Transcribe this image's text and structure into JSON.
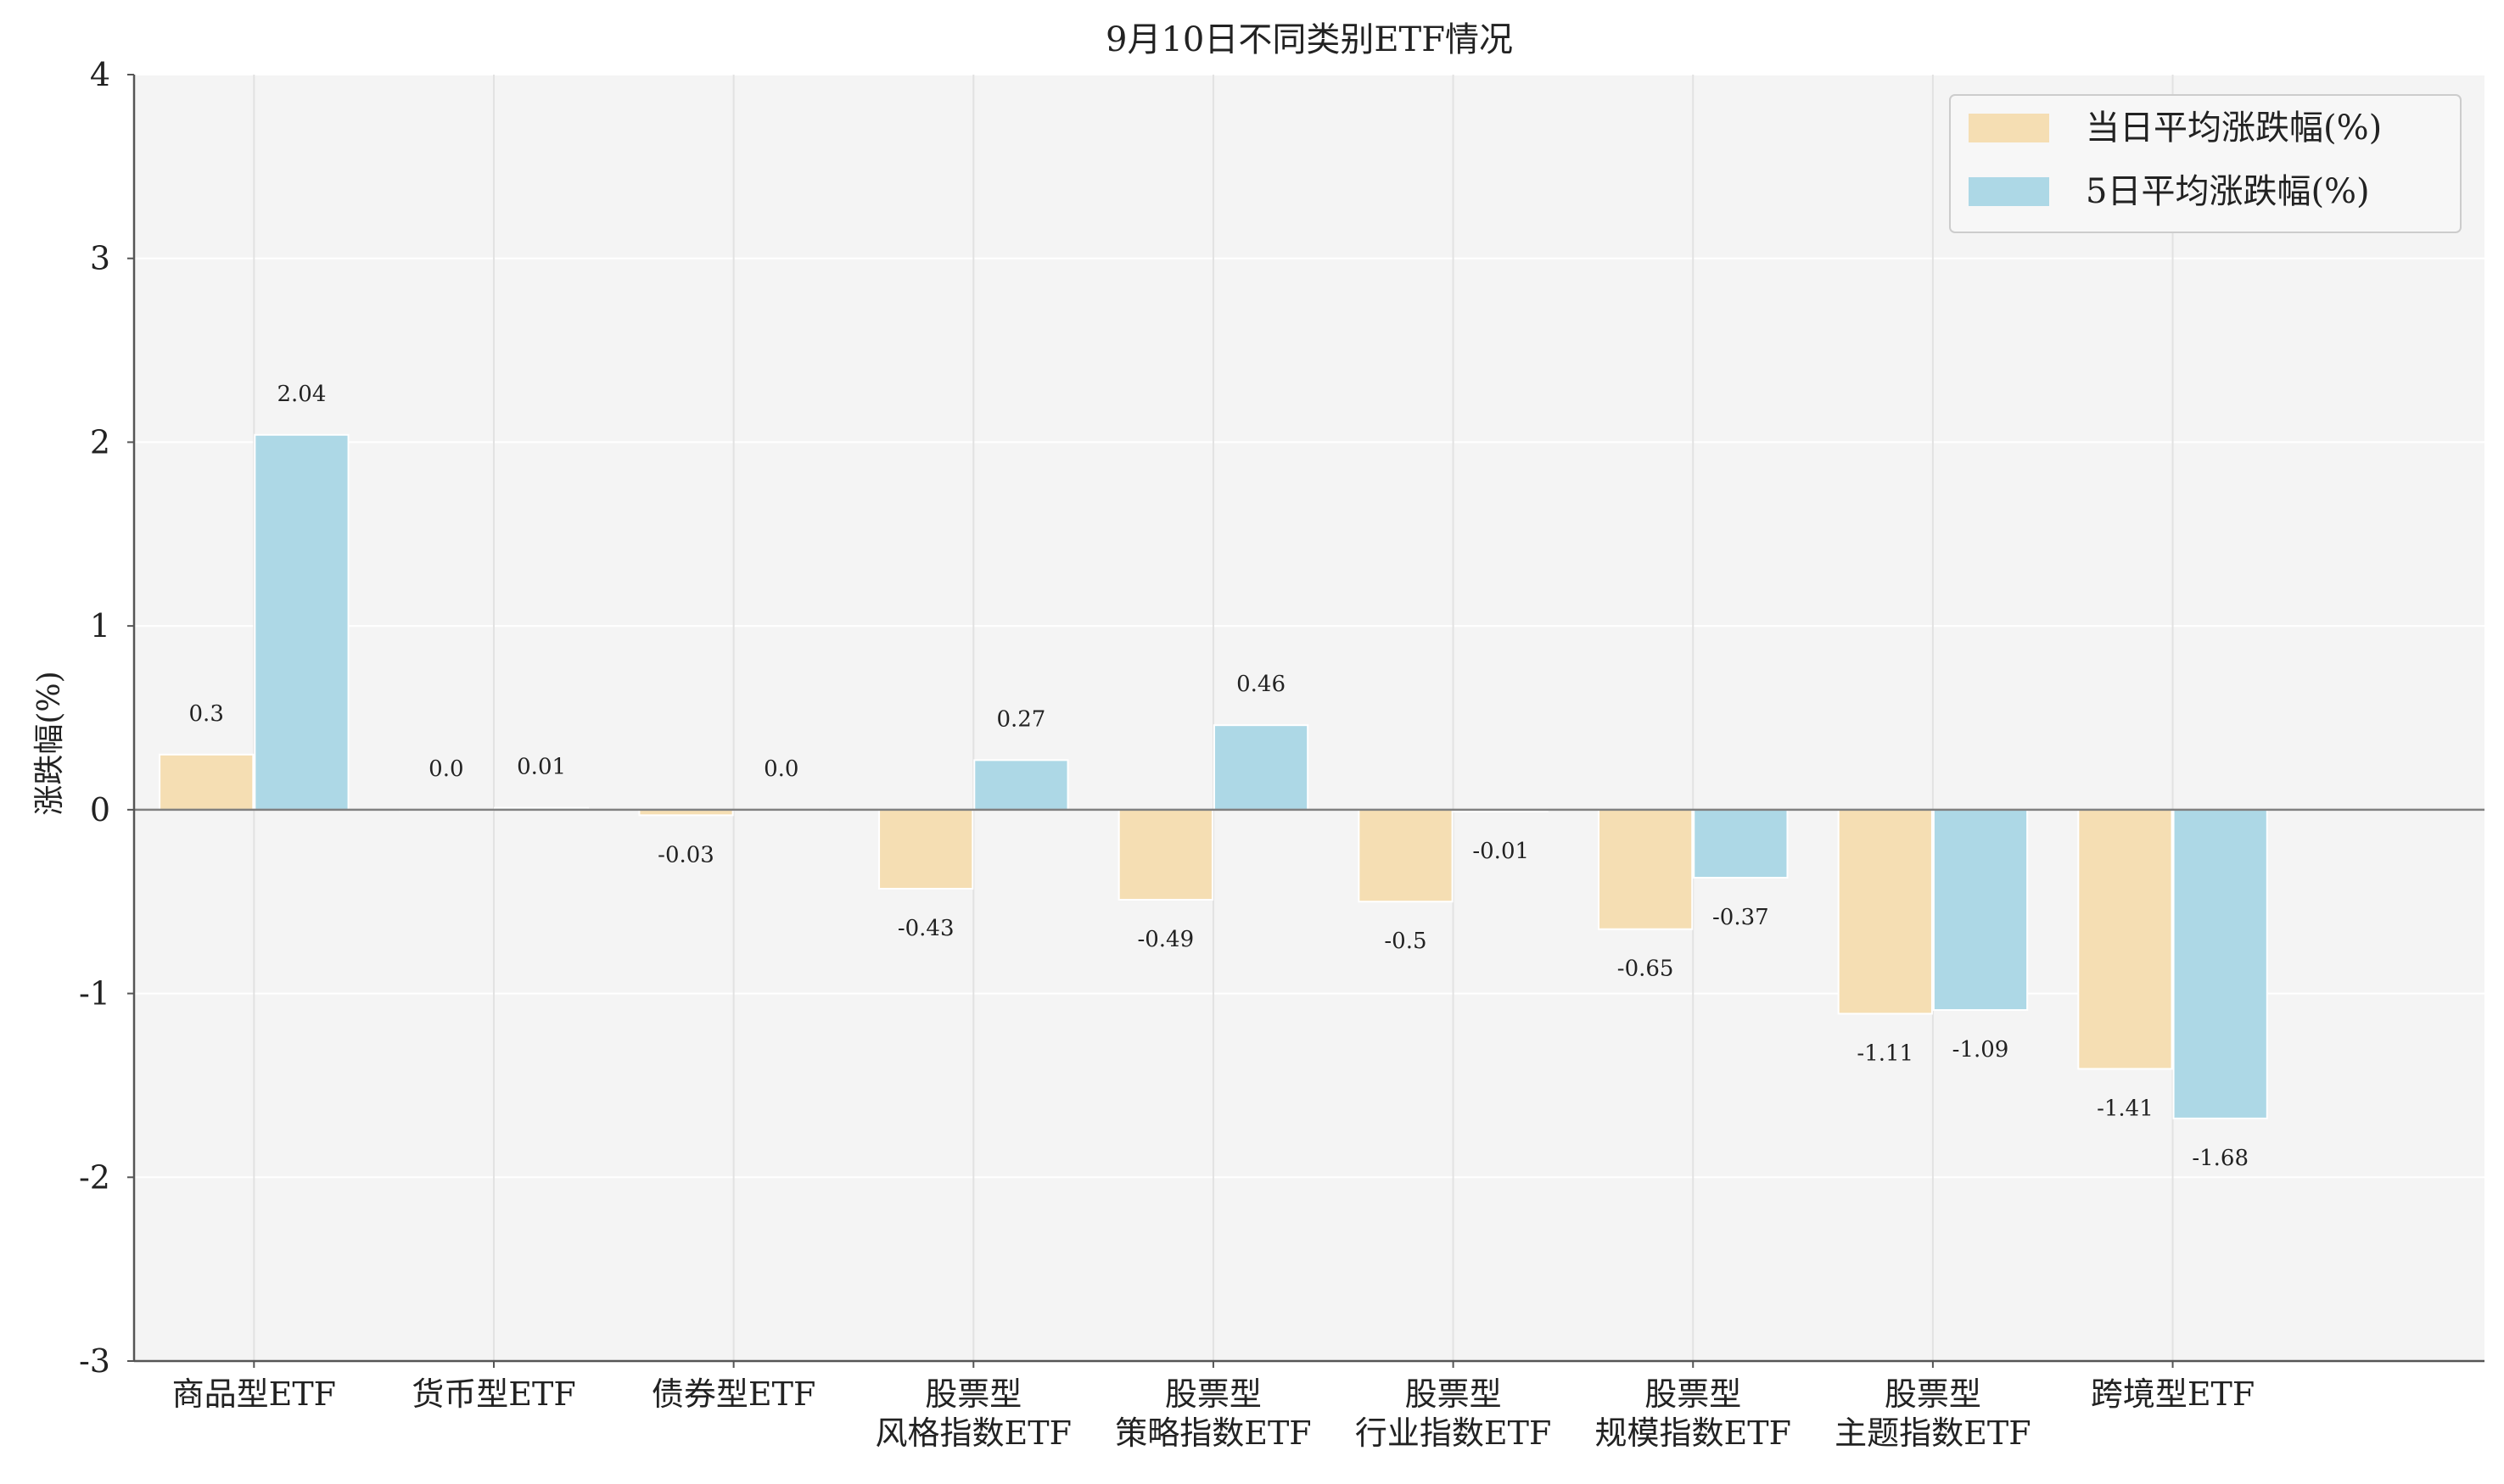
{
  "chart_data": {
    "type": "bar",
    "title": "9月10日不同类别ETF情况",
    "xlabel": "",
    "ylabel": "涨跌幅(%)",
    "ylim": [
      -3,
      4
    ],
    "yticks": [
      -3,
      -2,
      -1,
      0,
      1,
      2,
      3,
      4
    ],
    "grid": true,
    "legend_position": "top-right",
    "categories": [
      "商品型ETF",
      "货币型ETF",
      "债券型ETF",
      "股票型\n风格指数ETF",
      "股票型\n策略指数ETF",
      "股票型\n行业指数ETF",
      "股票型\n规模指数ETF",
      "股票型\n主题指数ETF",
      "跨境型ETF"
    ],
    "series": [
      {
        "name": "当日平均涨跌幅(%)",
        "color": "#f5deb3",
        "values": [
          0.3,
          0.0,
          -0.03,
          -0.43,
          -0.49,
          -0.5,
          -0.65,
          -1.11,
          -1.41
        ],
        "labels": [
          "0.3",
          "0.0",
          "-0.03",
          "-0.43",
          "-0.49",
          "-0.5",
          "-0.65",
          "-1.11",
          "-1.41"
        ]
      },
      {
        "name": "5日平均涨跌幅(%)",
        "color": "#add8e6",
        "values": [
          2.04,
          0.01,
          0.0,
          0.27,
          0.46,
          -0.01,
          -0.37,
          -1.09,
          -1.68
        ],
        "labels": [
          "2.04",
          "0.01",
          "0.0",
          "0.27",
          "0.46",
          "-0.01",
          "-0.37",
          "-1.09",
          "-1.68"
        ]
      }
    ]
  }
}
